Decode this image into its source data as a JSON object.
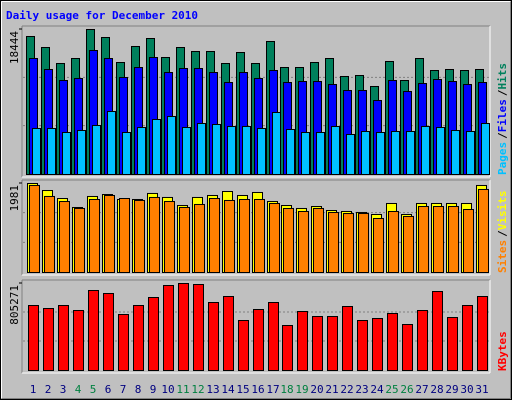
{
  "chart_data": [
    {
      "type": "bar",
      "title": "Daily usage for December 2010",
      "legend_separator": "/",
      "ylim": [
        0,
        18444
      ],
      "yticks": [
        18444
      ],
      "series": [
        {
          "name": "Hits",
          "color": "#00805c",
          "values": [
            17554,
            16154,
            14119,
            14755,
            18444,
            17426,
            14246,
            16282,
            17299,
            14882,
            16154,
            15646,
            15646,
            14119,
            15518,
            14119,
            16918,
            13610,
            13610,
            14246,
            14755,
            12466,
            12593,
            11194,
            14374,
            11957,
            14755,
            13229,
            13356,
            13229,
            13356
          ]
        },
        {
          "name": "Files",
          "color": "#0000ff",
          "values": [
            14755,
            13356,
            11957,
            12211,
            15773,
            14755,
            12338,
            13610,
            14882,
            12974,
            13483,
            13483,
            12974,
            11702,
            12974,
            12211,
            13229,
            11702,
            11830,
            11830,
            11448,
            10685,
            10685,
            9413,
            11957,
            10558,
            11575,
            12084,
            11830,
            11448,
            11702
          ]
        },
        {
          "name": "Pages",
          "color": "#00c0ff",
          "values": [
            5851,
            5851,
            5342,
            5597,
            6233,
            8014,
            5342,
            5978,
            6996,
            7378,
            5978,
            6487,
            6360,
            6106,
            6106,
            5851,
            7886,
            5724,
            5342,
            5342,
            6106,
            5088,
            5470,
            5342,
            5470,
            5470,
            6106,
            5978,
            5597,
            5470,
            6487
          ]
        }
      ]
    },
    {
      "type": "bar",
      "legend_separator": "/",
      "ylim": [
        0,
        1981
      ],
      "yticks": [
        1981
      ],
      "series": [
        {
          "name": "Visits",
          "color": "#ffff00",
          "values": [
            1981,
            1825,
            1647,
            1447,
            1692,
            1736,
            1625,
            1625,
            1759,
            1670,
            1491,
            1670,
            1714,
            1803,
            1714,
            1781,
            1580,
            1491,
            1425,
            1469,
            1380,
            1358,
            1336,
            1291,
            1536,
            1291,
            1536,
            1536,
            1536,
            1536,
            1937
          ]
        },
        {
          "name": "Sites",
          "color": "#ff8000",
          "values": [
            1937,
            1692,
            1580,
            1425,
            1625,
            1714,
            1647,
            1603,
            1670,
            1580,
            1447,
            1514,
            1647,
            1603,
            1625,
            1625,
            1536,
            1425,
            1358,
            1425,
            1336,
            1313,
            1313,
            1202,
            1358,
            1247,
            1469,
            1469,
            1469,
            1402,
            1848
          ]
        }
      ]
    },
    {
      "type": "bar",
      "ylim": [
        0,
        805271
      ],
      "yticks": [
        805271
      ],
      "categories": [
        1,
        2,
        3,
        4,
        5,
        6,
        7,
        8,
        9,
        10,
        11,
        12,
        13,
        14,
        15,
        16,
        17,
        18,
        19,
        20,
        21,
        22,
        23,
        24,
        25,
        26,
        27,
        28,
        29,
        30,
        31
      ],
      "category_colors": [
        "#000080",
        "#000080",
        "#000080",
        "#008040",
        "#008040",
        "#000080",
        "#000080",
        "#000080",
        "#000080",
        "#000080",
        "#008040",
        "#008040",
        "#000080",
        "#000080",
        "#000080",
        "#000080",
        "#000080",
        "#008040",
        "#008040",
        "#000080",
        "#000080",
        "#000080",
        "#000080",
        "#000080",
        "#008040",
        "#008040",
        "#000080",
        "#000080",
        "#000080",
        "#000080",
        "#000080"
      ],
      "series": [
        {
          "name": "KBytes",
          "color": "#ff0000",
          "values": [
            601640,
            573872,
            601640,
            555360,
            740480,
            712712,
            518336,
            601640,
            675688,
            786760,
            805271,
            796016,
            629408,
            684944,
            462800,
            564616,
            629408,
            416520,
            546104,
            499824,
            499824,
            592384,
            462800,
            481312,
            527592,
            425776,
            555360,
            731224,
            490568,
            601640,
            684944
          ]
        }
      ]
    }
  ]
}
